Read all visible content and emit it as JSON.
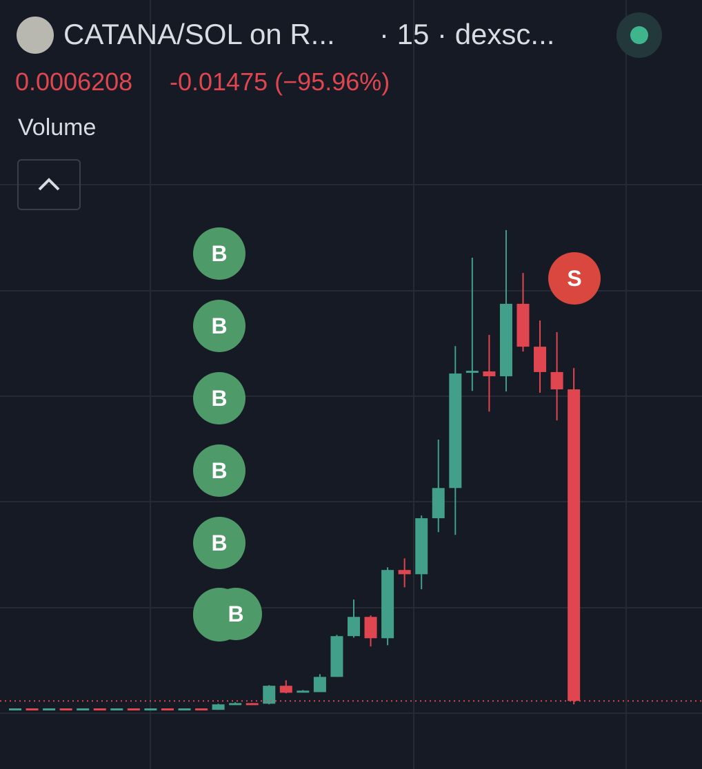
{
  "header": {
    "title": "CATANA/SOL on R...",
    "meta": "· 15 · dexsc...",
    "change": "-0.01475",
    "change_pct": "(−95.96%)",
    "indicator": "Volume"
  },
  "chart_data": {
    "type": "candlestick",
    "ylim": [
      -0.0026,
      0.0338
    ],
    "last_price": 0.0006208,
    "up_color": "#42a08a",
    "down_color": "#e0464f",
    "open": [
      0.00025,
      0.00027,
      0.00025,
      0.00027,
      0.00025,
      0.00027,
      0.00025,
      0.00027,
      0.00025,
      0.00027,
      0.00025,
      0.00027,
      0.0002,
      0.00046,
      0.00052,
      0.00049,
      0.00134,
      0.00104,
      0.00104,
      0.00176,
      0.00369,
      0.0046,
      0.00359,
      0.00682,
      0.00662,
      0.00927,
      0.0107,
      0.01619,
      0.01622,
      0.01599,
      0.01942,
      0.01739,
      0.01619,
      0.01537
    ],
    "high": [
      0.00027,
      0.00027,
      0.00027,
      0.00027,
      0.00027,
      0.00027,
      0.00027,
      0.00027,
      0.00027,
      0.00027,
      0.00027,
      0.00027,
      0.00049,
      0.00056,
      0.00052,
      0.00137,
      0.0016,
      0.00114,
      0.00189,
      0.00375,
      0.00542,
      0.00467,
      0.00695,
      0.00737,
      0.0094,
      0.01299,
      0.01742,
      0.0216,
      0.01795,
      0.02291,
      0.02088,
      0.01863,
      0.01808,
      0.01638
    ],
    "low": [
      0.00025,
      0.00025,
      0.00025,
      0.00025,
      0.00025,
      0.00025,
      0.00025,
      0.00025,
      0.00025,
      0.00025,
      0.00025,
      0.00025,
      0.0002,
      0.00046,
      0.00046,
      0.00046,
      0.00098,
      0.00104,
      0.00104,
      0.00176,
      0.00362,
      0.0032,
      0.00326,
      0.006,
      0.00591,
      0.00861,
      0.00848,
      0.0153,
      0.01432,
      0.01527,
      0.01716,
      0.01521,
      0.0139,
      0.00046
    ],
    "close": [
      0.00027,
      0.00025,
      0.00027,
      0.00025,
      0.00027,
      0.00025,
      0.00027,
      0.00025,
      0.00027,
      0.00025,
      0.00027,
      0.00025,
      0.00046,
      0.00052,
      0.00046,
      0.00134,
      0.00101,
      0.00111,
      0.00176,
      0.00369,
      0.0046,
      0.00359,
      0.00682,
      0.00662,
      0.00927,
      0.0107,
      0.01612,
      0.01625,
      0.01599,
      0.01942,
      0.01739,
      0.01619,
      0.01537,
      0.0006208
    ],
    "buy_markers": [
      "B",
      "B",
      "B",
      "B",
      "B",
      "B",
      "B"
    ],
    "sell_markers": [
      "S"
    ]
  }
}
